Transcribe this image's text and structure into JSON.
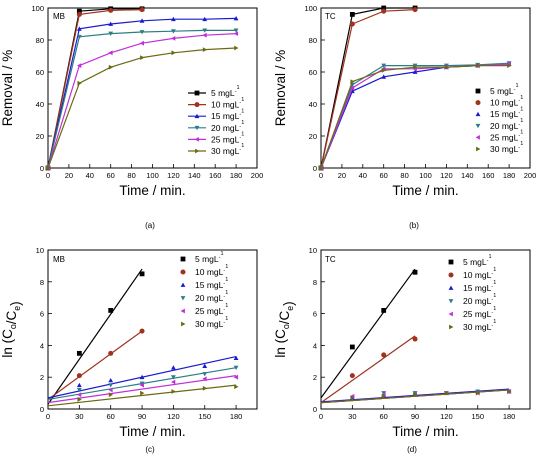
{
  "colors": {
    "s5": "#000000",
    "s10": "#a0321e",
    "s15": "#1a1ad0",
    "s20": "#2a7f86",
    "s25": "#c030d8",
    "s30": "#6b6a14"
  },
  "chart_data": [
    {
      "panel": "(a)",
      "tag": "MB",
      "type": "line",
      "xlabel": "Time / min.",
      "ylabel": "Removal / %",
      "xlim": [
        0,
        200
      ],
      "ylim": [
        0,
        100
      ],
      "xticks": [
        0,
        20,
        40,
        60,
        80,
        100,
        120,
        140,
        160,
        180,
        200
      ],
      "yticks": [
        0,
        20,
        40,
        60,
        80,
        100
      ],
      "legend_position": "right",
      "series": [
        {
          "name": "5 mgL⁻¹",
          "marker": "square",
          "color": "#000000",
          "x": [
            0,
            30,
            60,
            90
          ],
          "y": [
            0,
            98,
            99.5,
            99.5
          ]
        },
        {
          "name": "10 mgL⁻¹",
          "marker": "circle",
          "color": "#a0321e",
          "x": [
            0,
            30,
            60,
            90
          ],
          "y": [
            0,
            96,
            98.5,
            99
          ]
        },
        {
          "name": "15 mgL⁻¹",
          "marker": "triangle-up",
          "color": "#1a1ad0",
          "x": [
            0,
            30,
            60,
            90,
            120,
            150,
            180
          ],
          "y": [
            0,
            87,
            90,
            92,
            93,
            93,
            93.5
          ]
        },
        {
          "name": "20 mgL⁻¹",
          "marker": "triangle-down",
          "color": "#2a7f86",
          "x": [
            0,
            30,
            60,
            90,
            120,
            150,
            180
          ],
          "y": [
            0,
            82,
            84,
            85,
            85.5,
            86,
            86
          ]
        },
        {
          "name": "25 mgL⁻¹",
          "marker": "triangle-left",
          "color": "#c030d8",
          "x": [
            0,
            30,
            60,
            90,
            120,
            150,
            180
          ],
          "y": [
            0,
            64,
            72,
            78,
            81,
            83,
            84
          ]
        },
        {
          "name": "30 mgL⁻¹",
          "marker": "triangle-right",
          "color": "#6b6a14",
          "x": [
            0,
            30,
            60,
            90,
            120,
            150,
            180
          ],
          "y": [
            0,
            53,
            63,
            69,
            72,
            74,
            75
          ]
        }
      ]
    },
    {
      "panel": "(b)",
      "tag": "TC",
      "type": "line",
      "xlabel": "Time / min.",
      "ylabel": "Removal / %",
      "xlim": [
        0,
        200
      ],
      "ylim": [
        0,
        100
      ],
      "xticks": [
        0,
        20,
        40,
        60,
        80,
        100,
        120,
        140,
        160,
        180,
        200
      ],
      "yticks": [
        0,
        20,
        40,
        60,
        80,
        100
      ],
      "legend_position": "right",
      "series": [
        {
          "name": "5 mgL⁻¹",
          "marker": "square",
          "color": "#000000",
          "x": [
            0,
            30,
            60,
            90
          ],
          "y": [
            0,
            96,
            100,
            100
          ]
        },
        {
          "name": "10 mgL⁻¹",
          "marker": "circle",
          "color": "#a0321e",
          "x": [
            0,
            30,
            60,
            90
          ],
          "y": [
            0,
            90,
            98,
            99
          ]
        },
        {
          "name": "15 mgL⁻¹",
          "marker": "triangle-up",
          "color": "#1a1ad0",
          "x": [
            0,
            30,
            60,
            90,
            120,
            150,
            180
          ],
          "y": [
            0,
            48,
            57,
            60,
            63,
            64,
            65
          ]
        },
        {
          "name": "20 mgL⁻¹",
          "marker": "triangle-down",
          "color": "#2a7f86",
          "x": [
            0,
            30,
            60,
            90,
            120,
            150,
            180
          ],
          "y": [
            0,
            52,
            64,
            64,
            64,
            64.5,
            65.5
          ]
        },
        {
          "name": "25 mgL⁻¹",
          "marker": "triangle-left",
          "color": "#c030d8",
          "x": [
            0,
            30,
            60,
            90,
            120,
            150,
            180
          ],
          "y": [
            0,
            50,
            62,
            62,
            63,
            64,
            65
          ]
        },
        {
          "name": "30 mgL⁻¹",
          "marker": "triangle-right",
          "color": "#6b6a14",
          "x": [
            0,
            30,
            60,
            90,
            120,
            150,
            180
          ],
          "y": [
            0,
            54,
            61,
            63,
            63,
            64,
            64
          ]
        }
      ]
    },
    {
      "panel": "(c)",
      "tag": "MB",
      "type": "scatter",
      "xlabel": "Time / min.",
      "ylabel": "ln (Cₒ/Cₑ)",
      "xlim": [
        0,
        200
      ],
      "ylim": [
        0,
        10
      ],
      "xticks": [
        0,
        30,
        60,
        90,
        120,
        150,
        180
      ],
      "yticks": [
        0,
        2,
        4,
        6,
        8,
        10
      ],
      "legend_position": "top-right",
      "series": [
        {
          "name": "5 mgL⁻¹",
          "marker": "square",
          "color": "#000000",
          "x": [
            30,
            60,
            90
          ],
          "y": [
            3.5,
            6.2,
            8.5
          ],
          "fit": [
            0.3,
            8.8
          ]
        },
        {
          "name": "10 mgL⁻¹",
          "marker": "circle",
          "color": "#a0321e",
          "x": [
            30,
            60,
            90
          ],
          "y": [
            2.1,
            3.5,
            4.9
          ],
          "fit": [
            0.6,
            4.9
          ]
        },
        {
          "name": "15 mgL⁻¹",
          "marker": "triangle-up",
          "color": "#1a1ad0",
          "x": [
            30,
            60,
            90,
            120,
            150,
            180
          ],
          "y": [
            1.5,
            1.8,
            2.0,
            2.6,
            2.7,
            3.2
          ],
          "fit": [
            0.7,
            3.3
          ]
        },
        {
          "name": "20 mgL⁻¹",
          "marker": "triangle-down",
          "color": "#2a7f86",
          "x": [
            30,
            60,
            90,
            120,
            150,
            180
          ],
          "y": [
            1.2,
            1.5,
            1.6,
            2.0,
            2.2,
            2.6
          ],
          "fit": [
            0.6,
            2.6
          ]
        },
        {
          "name": "25 mgL⁻¹",
          "marker": "triangle-left",
          "color": "#c030d8",
          "x": [
            30,
            60,
            90,
            120,
            150,
            180
          ],
          "y": [
            0.9,
            1.2,
            1.5,
            1.7,
            1.9,
            2.0
          ],
          "fit": [
            0.4,
            2.1
          ]
        },
        {
          "name": "30 mgL⁻¹",
          "marker": "triangle-right",
          "color": "#6b6a14",
          "x": [
            30,
            60,
            90,
            120,
            150,
            180
          ],
          "y": [
            0.6,
            0.9,
            1.0,
            1.1,
            1.3,
            1.4
          ],
          "fit": [
            0.2,
            1.5
          ]
        }
      ]
    },
    {
      "panel": "(d)",
      "tag": "TC",
      "type": "scatter",
      "xlabel": "Time / min.",
      "ylabel": "ln (Cₒ/Cₑ)",
      "xlim": [
        0,
        200
      ],
      "ylim": [
        0,
        10
      ],
      "xticks": [
        0,
        30,
        60,
        90,
        120,
        150,
        180
      ],
      "yticks": [
        0,
        2,
        4,
        6,
        8,
        10
      ],
      "legend_position": "top-right",
      "series": [
        {
          "name": "5 mgL⁻¹",
          "marker": "square",
          "color": "#000000",
          "x": [
            30,
            60,
            90
          ],
          "y": [
            3.9,
            6.2,
            8.6
          ],
          "fit": [
            0.7,
            8.8
          ]
        },
        {
          "name": "10 mgL⁻¹",
          "marker": "circle",
          "color": "#a0321e",
          "x": [
            30,
            60,
            90
          ],
          "y": [
            2.1,
            3.4,
            4.4
          ],
          "fit": [
            0.4,
            4.6
          ]
        },
        {
          "name": "15 mgL⁻¹",
          "marker": "triangle-up",
          "color": "#1a1ad0",
          "x": [
            30,
            60,
            90,
            120,
            150,
            180
          ],
          "y": [
            0.7,
            0.9,
            1.0,
            1.0,
            1.1,
            1.1
          ],
          "fit": [
            0.45,
            1.25
          ]
        },
        {
          "name": "20 mgL⁻¹",
          "marker": "triangle-down",
          "color": "#2a7f86",
          "x": [
            30,
            60,
            90,
            120,
            150,
            180
          ],
          "y": [
            0.7,
            1.0,
            1.0,
            1.0,
            1.1,
            1.1
          ],
          "fit": [
            0.4,
            1.2
          ]
        },
        {
          "name": "25 mgL⁻¹",
          "marker": "triangle-left",
          "color": "#c030d8",
          "x": [
            30,
            60,
            90,
            120,
            150,
            180
          ],
          "y": [
            0.8,
            0.9,
            0.9,
            1.0,
            1.0,
            1.1
          ],
          "fit": [
            0.4,
            1.2
          ]
        },
        {
          "name": "30 mgL⁻¹",
          "marker": "triangle-right",
          "color": "#6b6a14",
          "x": [
            30,
            60,
            90,
            120,
            150,
            180
          ],
          "y": [
            0.7,
            0.8,
            0.9,
            1.0,
            1.0,
            1.1
          ],
          "fit": [
            0.4,
            1.2
          ]
        }
      ]
    }
  ]
}
